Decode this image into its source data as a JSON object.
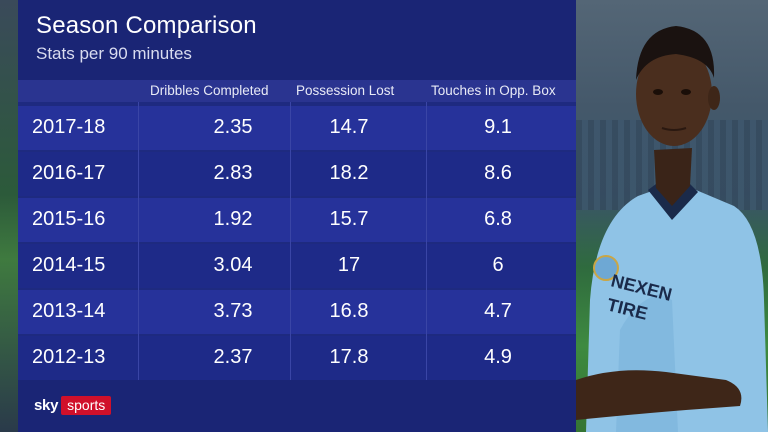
{
  "header": {
    "title": "Season Comparison",
    "subtitle": "Stats per 90 minutes"
  },
  "columns": [
    "Dribbles Completed",
    "Possession Lost",
    "Touches in Opp. Box"
  ],
  "rows": [
    {
      "season": "2017-18",
      "dribbles": "2.35",
      "possession_lost": "14.7",
      "touches": "9.1"
    },
    {
      "season": "2016-17",
      "dribbles": "2.83",
      "possession_lost": "18.2",
      "touches": "8.6"
    },
    {
      "season": "2015-16",
      "dribbles": "1.92",
      "possession_lost": "15.7",
      "touches": "6.8"
    },
    {
      "season": "2014-15",
      "dribbles": "3.04",
      "possession_lost": "17",
      "touches": "6"
    },
    {
      "season": "2013-14",
      "dribbles": "3.73",
      "possession_lost": "16.8",
      "touches": "4.7"
    },
    {
      "season": "2012-13",
      "dribbles": "2.37",
      "possession_lost": "17.8",
      "touches": "4.9"
    }
  ],
  "logo": {
    "sky": "sky",
    "sports": "sports"
  },
  "sponsor": {
    "line1": "NEXEN",
    "line2": "TIRE"
  },
  "colors": {
    "panel": "#1e2a80",
    "row_alt": "#26329a",
    "brand_red": "#d0102a",
    "shirt": "#8fc3e6"
  }
}
